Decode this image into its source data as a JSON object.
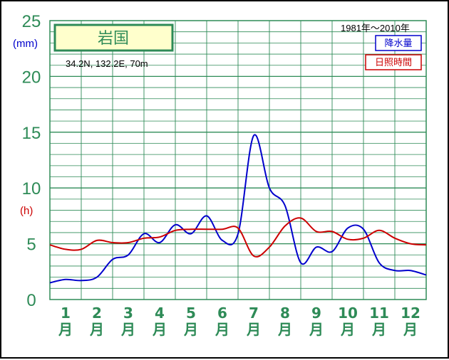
{
  "chart_data": {
    "type": "line",
    "station": "岩国",
    "location": "34.2N,  132.2E,  70m",
    "period": "1981年〜2010年",
    "y_unit_precip": "(mm)",
    "y_unit_sun": "(h)",
    "ylim": [
      0,
      25
    ],
    "yticks": [
      "0",
      "5",
      "10",
      "15",
      "20",
      "25"
    ],
    "months": [
      "1",
      "2",
      "3",
      "4",
      "5",
      "6",
      "7",
      "8",
      "9",
      "10",
      "11",
      "12"
    ],
    "month_suffix": "月",
    "x": [
      0.0,
      0.5,
      1.0,
      1.5,
      2.0,
      2.5,
      3.0,
      3.5,
      4.0,
      4.5,
      5.0,
      5.5,
      6.0,
      6.5,
      7.0,
      7.5,
      8.0,
      8.5,
      9.0,
      9.5,
      10.0,
      10.5,
      11.0,
      11.5,
      12.0
    ],
    "series": [
      {
        "name": "降水量",
        "color": "#0000cc",
        "values": [
          1.5,
          1.8,
          1.7,
          2.0,
          3.6,
          4.0,
          5.9,
          5.1,
          6.7,
          5.9,
          7.5,
          5.3,
          5.9,
          14.7,
          10.0,
          8.4,
          3.3,
          4.7,
          4.3,
          6.4,
          6.3,
          3.3,
          2.6,
          2.6,
          2.2
        ]
      },
      {
        "name": "日照時間",
        "color": "#cc0000",
        "values": [
          4.9,
          4.5,
          4.5,
          5.3,
          5.1,
          5.1,
          5.5,
          5.6,
          6.2,
          6.3,
          6.3,
          6.3,
          6.4,
          3.9,
          4.7,
          6.6,
          7.3,
          6.1,
          6.1,
          5.4,
          5.5,
          6.2,
          5.5,
          5.0,
          4.9
        ]
      }
    ]
  },
  "legend": {
    "precip_label": "降水量",
    "sun_label": "日照時間"
  }
}
